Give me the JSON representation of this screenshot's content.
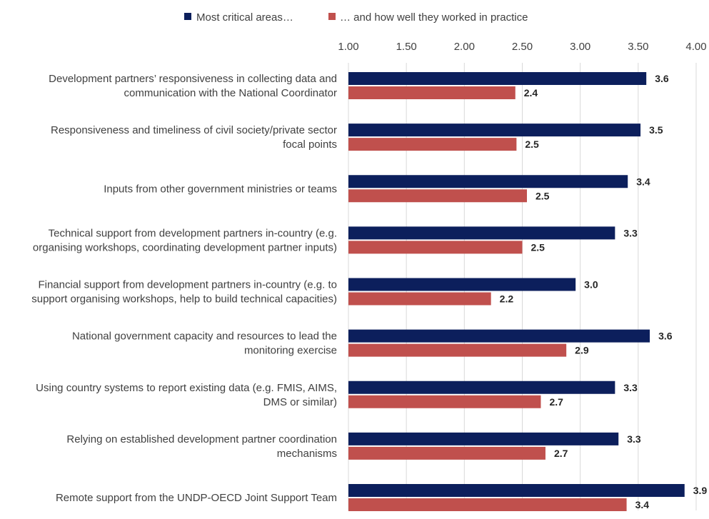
{
  "chart_data": {
    "type": "bar",
    "orientation": "horizontal",
    "xlim": [
      1.0,
      4.0
    ],
    "x_ticks": [
      "1.00",
      "1.50",
      "2.00",
      "2.50",
      "3.00",
      "3.50",
      "4.00"
    ],
    "x_tick_values": [
      1.0,
      1.5,
      2.0,
      2.5,
      3.0,
      3.5,
      4.0
    ],
    "x_axis_position": "top",
    "grid": true,
    "legend_position": "top",
    "categories": [
      [
        "Development partners’ responsiveness  in collecting data and",
        "communication  with the National Coordinator"
      ],
      [
        "Responsiveness and timeliness of civil society/private sector",
        "focal points"
      ],
      [
        "Inputs from other government ministries or teams"
      ],
      [
        "Technical support from development partners in-country (e.g.",
        "organising workshops, coordinating development partner inputs)"
      ],
      [
        "Financial support from development partners in-country (e.g. to",
        "support organising workshops, help to build technical capacities)"
      ],
      [
        "National government capacity and resources to lead the",
        "monitoring exercise"
      ],
      [
        "Using country systems to report existing data (e.g. FMIS, AIMS,",
        "DMS or similar)"
      ],
      [
        "Relying on established development partner coordination",
        "mechanisms"
      ],
      [
        "Remote support from the UNDP-OECD Joint Support Team"
      ]
    ],
    "series": [
      {
        "name": "Most critical areas…",
        "color": "#0c1f5c",
        "values": [
          3.57,
          3.52,
          3.41,
          3.3,
          2.96,
          3.6,
          3.3,
          3.33,
          3.9
        ],
        "labels": [
          "3.6",
          "3.5",
          "3.4",
          "3.3",
          "3.0",
          "3.6",
          "3.3",
          "3.3",
          "3.9"
        ]
      },
      {
        "name": "… and how well they worked in practice",
        "color": "#c0504d",
        "values": [
          2.44,
          2.45,
          2.54,
          2.5,
          2.23,
          2.88,
          2.66,
          2.7,
          3.4
        ],
        "labels": [
          "2.4",
          "2.5",
          "2.5",
          "2.5",
          "2.2",
          "2.9",
          "2.7",
          "2.7",
          "3.4"
        ]
      }
    ]
  }
}
